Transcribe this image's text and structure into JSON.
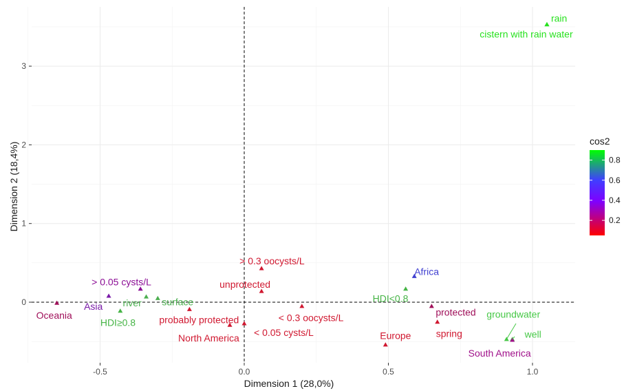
{
  "chart_data": {
    "type": "scatter",
    "title": "",
    "xlabel": "Dimension 1 (28,0%)",
    "ylabel": "Dimension 2 (18,4%)",
    "xlim": [
      -0.83,
      1.15
    ],
    "ylim": [
      -0.72,
      3.75
    ],
    "x_ticks": [
      -0.5,
      0.0,
      0.5,
      1.0
    ],
    "x_tick_labels": [
      "-0.5",
      "0.0",
      "0.5",
      "1.0"
    ],
    "y_ticks": [
      0,
      1,
      2,
      3
    ],
    "y_tick_labels": [
      "0",
      "1",
      "2",
      "3"
    ],
    "grid": true,
    "reference_lines": {
      "x": 0,
      "y": 0,
      "style": "dashed"
    },
    "color_legend": {
      "title": "cos2",
      "ticks": [
        0.2,
        0.4,
        0.6,
        0.8
      ],
      "tick_labels": [
        "0.2",
        "0.4",
        "0.6",
        "0.8"
      ],
      "range": [
        0.05,
        0.9
      ],
      "colors": [
        "#ff0000",
        "#7f00ff",
        "#3f3fff",
        "#00ff00"
      ],
      "placement": "right"
    },
    "points": [
      {
        "label": "rain",
        "x": 1.05,
        "y": 3.53,
        "cos2": 0.88,
        "color": "#27e11e"
      },
      {
        "label": "cistern with rain water",
        "x": 1.05,
        "y": 3.53,
        "cos2": 0.88,
        "color": "#27e11e"
      },
      {
        "label": "Africa",
        "x": 0.59,
        "y": 0.33,
        "cos2": 0.55,
        "color": "#3f3fd0"
      },
      {
        "label": "HDI<0.8",
        "x": 0.56,
        "y": 0.17,
        "cos2": 0.75,
        "color": "#46b446"
      },
      {
        "label": "> 0.3 oocysts/L",
        "x": 0.06,
        "y": 0.43,
        "cos2": 0.12,
        "color": "#d01830"
      },
      {
        "label": "unprotected",
        "x": 0.06,
        "y": 0.14,
        "cos2": 0.12,
        "color": "#d01830"
      },
      {
        "label": "> 0.05 cysts/L",
        "x": -0.36,
        "y": 0.17,
        "cos2": 0.3,
        "color": "#8c0e96"
      },
      {
        "label": "Asia",
        "x": -0.47,
        "y": 0.08,
        "cos2": 0.38,
        "color": "#7a1aa8"
      },
      {
        "label": "river",
        "x": -0.34,
        "y": 0.07,
        "cos2": 0.72,
        "color": "#4caf50"
      },
      {
        "label": "surface",
        "x": -0.3,
        "y": 0.05,
        "cos2": 0.72,
        "color": "#4caf50"
      },
      {
        "label": "Oceania",
        "x": -0.65,
        "y": -0.01,
        "cos2": 0.25,
        "color": "#a0105a"
      },
      {
        "label": "HDI≥0.8",
        "x": -0.43,
        "y": -0.11,
        "cos2": 0.75,
        "color": "#46b446"
      },
      {
        "label": "probably protected",
        "x": -0.19,
        "y": -0.09,
        "cos2": 0.1,
        "color": "#d01830"
      },
      {
        "label": "North America",
        "x": -0.05,
        "y": -0.29,
        "cos2": 0.1,
        "color": "#d01830"
      },
      {
        "label": "< 0.05 cysts/L",
        "x": 0.0,
        "y": -0.27,
        "cos2": 0.1,
        "color": "#d01830"
      },
      {
        "label": "< 0.3 oocysts/L",
        "x": 0.2,
        "y": -0.05,
        "cos2": 0.1,
        "color": "#d01830"
      },
      {
        "label": "Europe",
        "x": 0.49,
        "y": -0.54,
        "cos2": 0.1,
        "color": "#d01830"
      },
      {
        "label": "protected",
        "x": 0.65,
        "y": -0.05,
        "cos2": 0.25,
        "color": "#a0105a"
      },
      {
        "label": "spring",
        "x": 0.67,
        "y": -0.25,
        "cos2": 0.1,
        "color": "#d01830"
      },
      {
        "label": "groundwater",
        "x": 0.91,
        "y": -0.47,
        "cos2": 0.8,
        "color": "#46c846"
      },
      {
        "label": "well",
        "x": 0.93,
        "y": -0.47,
        "cos2": 0.8,
        "color": "#46c846"
      },
      {
        "label": "South America",
        "x": 0.93,
        "y": -0.48,
        "cos2": 0.28,
        "color": "#a0108a"
      }
    ]
  }
}
